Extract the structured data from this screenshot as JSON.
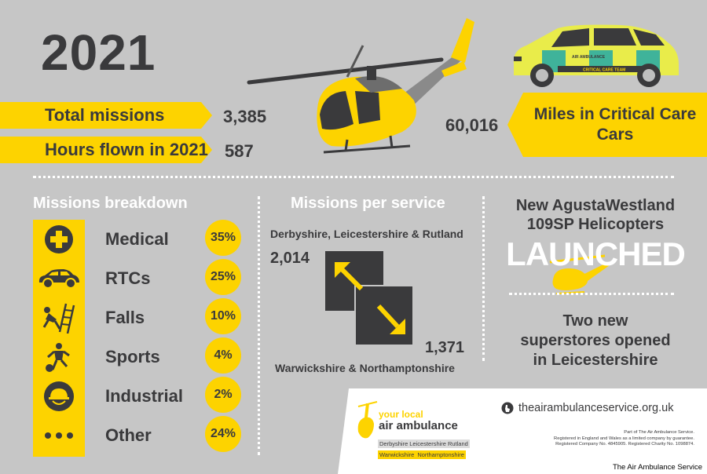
{
  "year": "2021",
  "stats": {
    "total_missions_label": "Total missions",
    "total_missions_value": "3,385",
    "hours_flown_label": "Hours flown in 2021",
    "hours_flown_value": "587",
    "miles_label": "Miles in Critical Care Cars",
    "miles_value": "60,016"
  },
  "car": {
    "door_text": "AIR AMBULANCE",
    "stripe_text": "CRITICAL CARE TEAM"
  },
  "breakdown": {
    "title": "Missions breakdown",
    "items": [
      {
        "label": "Medical",
        "percent": "35%",
        "icon": "medical-cross-icon"
      },
      {
        "label": "RTCs",
        "percent": "25%",
        "icon": "car-icon"
      },
      {
        "label": "Falls",
        "percent": "10%",
        "icon": "falling-person-icon"
      },
      {
        "label": "Sports",
        "percent": "4%",
        "icon": "football-player-icon"
      },
      {
        "label": "Industrial",
        "percent": "2%",
        "icon": "hard-hat-icon"
      },
      {
        "label": "Other",
        "percent": "24%",
        "icon": "ellipsis-icon"
      }
    ]
  },
  "per_service": {
    "title": "Missions per service",
    "north_label": "Derbyshire, Leicestershire & Rutland",
    "north_value": "2,014",
    "south_label": "Warwickshire & Northamptonshire",
    "south_value": "1,371"
  },
  "news": {
    "heli_line1": "New AgustaWestland",
    "heli_line2": "109SP Helicopters",
    "launched": "LAUNCHED",
    "stores_line1": "Two new",
    "stores_line2": "superstores opened",
    "stores_line3": "in Leicestershire"
  },
  "footer": {
    "logo_small": "your local",
    "logo_big": "air ambulance",
    "counties_row1": [
      "Derbyshire",
      "Leicestershire",
      "Rutland"
    ],
    "counties_row2": [
      "Warwickshire",
      "Northamptonshire"
    ],
    "website": "theairambulanceservice.org.uk",
    "legal_line1": "Part of The Air Ambulance Service.",
    "legal_line2": "Registered in England and Wales as a limited company by guarantee.",
    "legal_line3": "Registered Company No. 4845905. Registered Charity No. 1098874.",
    "credit": "The Air Ambulance Service"
  },
  "colors": {
    "yellow": "#fdd300",
    "charcoal": "#3a3a3c",
    "background": "#c6c6c6",
    "green": "#3fb39a"
  }
}
